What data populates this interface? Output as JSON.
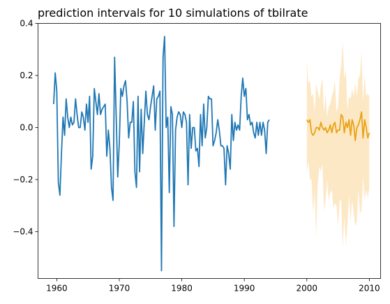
{
  "chart_data": {
    "type": "line",
    "title": "prediction intervals for 10 simulations of tbilrate",
    "xlabel": "",
    "ylabel": "",
    "xlim": [
      1957.0,
      2011.8
    ],
    "ylim": [
      -0.58,
      0.4
    ],
    "grid": false,
    "xticks": [
      1960,
      1970,
      1980,
      1990,
      2000,
      2010
    ],
    "xtick_labels": [
      "1960",
      "1970",
      "1980",
      "1990",
      "2000",
      "2010"
    ],
    "yticks": [
      -0.4,
      -0.2,
      0.0,
      0.2,
      0.4
    ],
    "ytick_labels": [
      "−0.4",
      "−0.2",
      "0.0",
      "0.2",
      "0.4"
    ],
    "colors": {
      "history": "#1f77b4",
      "forecast": "#e8a317",
      "band": "#fde6c0"
    },
    "series": [
      {
        "id": "history",
        "x_start": 1959.5,
        "x_step": 0.25,
        "values": [
          0.09,
          0.21,
          0.14,
          -0.21,
          -0.26,
          -0.1,
          0.04,
          -0.03,
          0.11,
          0.04,
          0.0,
          0.04,
          0.01,
          0.02,
          0.11,
          0.05,
          0.0,
          0.0,
          0.06,
          0.04,
          -0.01,
          0.09,
          0.02,
          0.12,
          -0.16,
          -0.11,
          0.15,
          0.1,
          0.05,
          0.13,
          0.05,
          0.07,
          0.08,
          0.09,
          -0.11,
          -0.01,
          -0.08,
          -0.23,
          -0.28,
          0.27,
          0.05,
          -0.19,
          -0.06,
          0.15,
          0.12,
          0.16,
          0.18,
          0.1,
          -0.04,
          0.02,
          0.02,
          0.1,
          -0.17,
          -0.23,
          0.12,
          -0.17,
          0.07,
          -0.1,
          0.02,
          0.14,
          0.05,
          0.03,
          0.08,
          0.12,
          0.16,
          -0.01,
          0.11,
          0.12,
          0.14,
          -0.55,
          0.27,
          0.35,
          0.0,
          0.04,
          -0.25,
          0.08,
          0.05,
          -0.38,
          -0.01,
          0.04,
          0.06,
          0.05,
          0.0,
          0.06,
          0.05,
          0.02,
          -0.22,
          0.05,
          -0.08,
          0.0,
          0.0,
          -0.09,
          -0.08,
          -0.15,
          0.05,
          -0.07,
          0.09,
          -0.04,
          0.0,
          0.12,
          0.11,
          0.11,
          -0.07,
          -0.05,
          -0.02,
          0.03,
          -0.01,
          -0.07,
          -0.07,
          -0.08,
          -0.22,
          -0.07,
          -0.1,
          -0.16,
          0.05,
          -0.05,
          0.02,
          -0.01,
          0.01,
          -0.01,
          0.12,
          0.19,
          0.12,
          0.15,
          0.03,
          0.05,
          0.01,
          0.02,
          -0.02,
          -0.04,
          0.02,
          -0.03,
          0.02,
          -0.03,
          0.02,
          -0.01,
          -0.1,
          0.02,
          0.03
        ]
      },
      {
        "id": "forecast",
        "x_start": 2000.0,
        "x_step": 0.25,
        "values": [
          0.03,
          0.02,
          0.03,
          -0.02,
          -0.03,
          -0.02,
          0.0,
          0.0,
          -0.01,
          0.02,
          0.0,
          -0.01,
          0.0,
          -0.02,
          -0.01,
          0.01,
          -0.02,
          0.01,
          0.02,
          -0.02,
          -0.01,
          -0.01,
          0.05,
          0.04,
          -0.02,
          0.02,
          0.0,
          0.03,
          -0.03,
          0.03,
          0.01,
          -0.05,
          0.0,
          0.01,
          0.03,
          0.06,
          -0.04,
          0.03,
          0.0,
          -0.04,
          -0.02
        ],
        "upper": [
          0.26,
          0.17,
          0.18,
          0.12,
          0.13,
          0.06,
          0.17,
          0.14,
          0.11,
          0.16,
          0.19,
          0.06,
          0.13,
          0.04,
          0.08,
          0.09,
          0.12,
          0.14,
          0.18,
          0.06,
          0.08,
          0.19,
          0.24,
          0.33,
          0.19,
          0.22,
          0.07,
          0.12,
          0.11,
          0.15,
          0.12,
          0.17,
          0.12,
          0.19,
          0.2,
          0.29,
          0.1,
          0.2,
          0.12,
          0.13,
          0.12
        ],
        "lower": [
          -0.17,
          -0.13,
          -0.2,
          -0.2,
          -0.33,
          -0.25,
          -0.42,
          -0.22,
          -0.15,
          -0.17,
          -0.14,
          -0.32,
          -0.28,
          -0.2,
          -0.28,
          -0.25,
          -0.24,
          -0.31,
          -0.29,
          -0.3,
          -0.38,
          -0.28,
          -0.28,
          -0.46,
          -0.34,
          -0.45,
          -0.37,
          -0.26,
          -0.36,
          -0.28,
          -0.33,
          -0.38,
          -0.36,
          -0.24,
          -0.33,
          -0.32,
          -0.19,
          -0.28,
          -0.24,
          -0.27,
          -0.23
        ]
      }
    ]
  }
}
